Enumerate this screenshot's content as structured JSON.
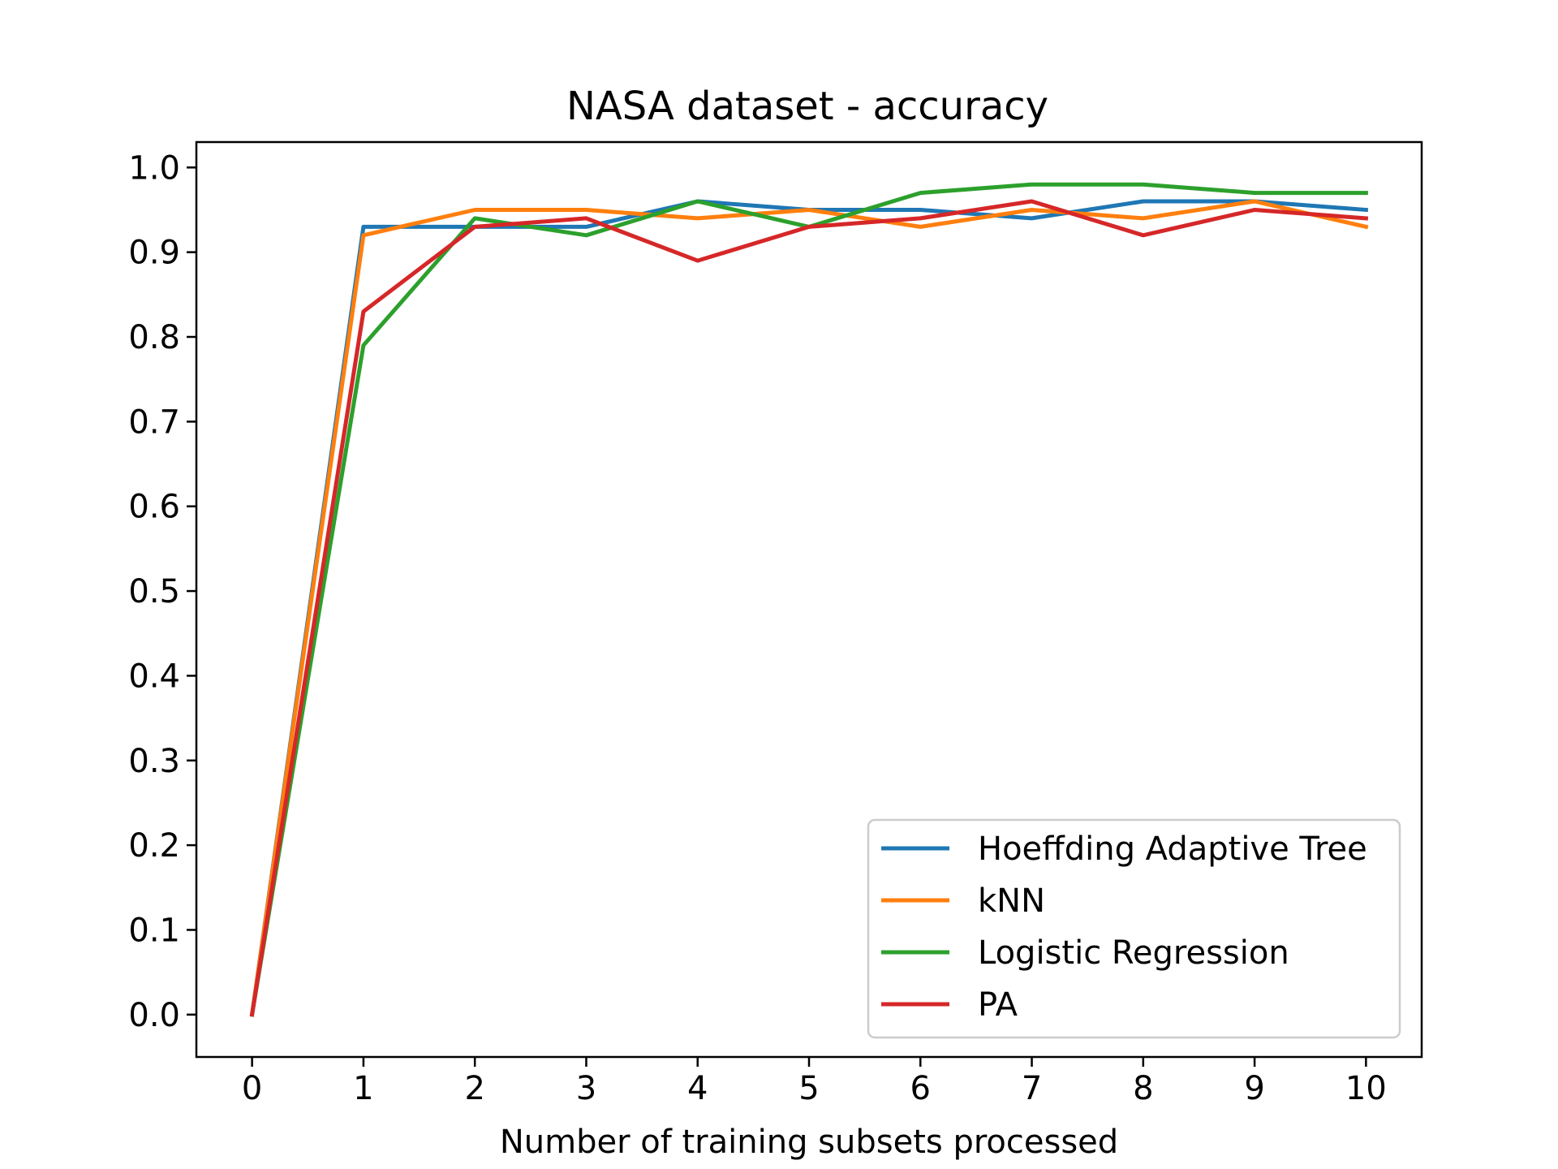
{
  "chart_data": {
    "type": "line",
    "title": "NASA dataset - accuracy",
    "xlabel": "Number of training subsets processed",
    "ylabel": "",
    "x": [
      0,
      1,
      2,
      3,
      4,
      5,
      6,
      7,
      8,
      9,
      10
    ],
    "xlim": [
      -0.5,
      10.5
    ],
    "ylim": [
      -0.05,
      1.03
    ],
    "xticks": [
      0,
      1,
      2,
      3,
      4,
      5,
      6,
      7,
      8,
      9,
      10
    ],
    "xtick_labels": [
      "0",
      "1",
      "2",
      "3",
      "4",
      "5",
      "6",
      "7",
      "8",
      "9",
      "10"
    ],
    "yticks": [
      0.0,
      0.1,
      0.2,
      0.3,
      0.4,
      0.5,
      0.6,
      0.7,
      0.8,
      0.9,
      1.0
    ],
    "ytick_labels": [
      "0.0",
      "0.1",
      "0.2",
      "0.3",
      "0.4",
      "0.5",
      "0.6",
      "0.7",
      "0.8",
      "0.9",
      "1.0"
    ],
    "grid": false,
    "legend_position": "lower-right",
    "series": [
      {
        "name": "Hoeffding Adaptive Tree",
        "color": "#1f77b4",
        "values": [
          0.0,
          0.93,
          0.93,
          0.93,
          0.96,
          0.95,
          0.95,
          0.94,
          0.96,
          0.96,
          0.95
        ]
      },
      {
        "name": "kNN",
        "color": "#ff7f0e",
        "values": [
          0.0,
          0.92,
          0.95,
          0.95,
          0.94,
          0.95,
          0.93,
          0.95,
          0.94,
          0.96,
          0.93
        ]
      },
      {
        "name": "Logistic Regression",
        "color": "#2ca02c",
        "values": [
          0.0,
          0.79,
          0.94,
          0.92,
          0.96,
          0.93,
          0.97,
          0.98,
          0.98,
          0.97,
          0.97
        ]
      },
      {
        "name": "PA",
        "color": "#d62728",
        "values": [
          0.0,
          0.83,
          0.93,
          0.94,
          0.89,
          0.93,
          0.94,
          0.96,
          0.92,
          0.95,
          0.94
        ]
      }
    ]
  }
}
